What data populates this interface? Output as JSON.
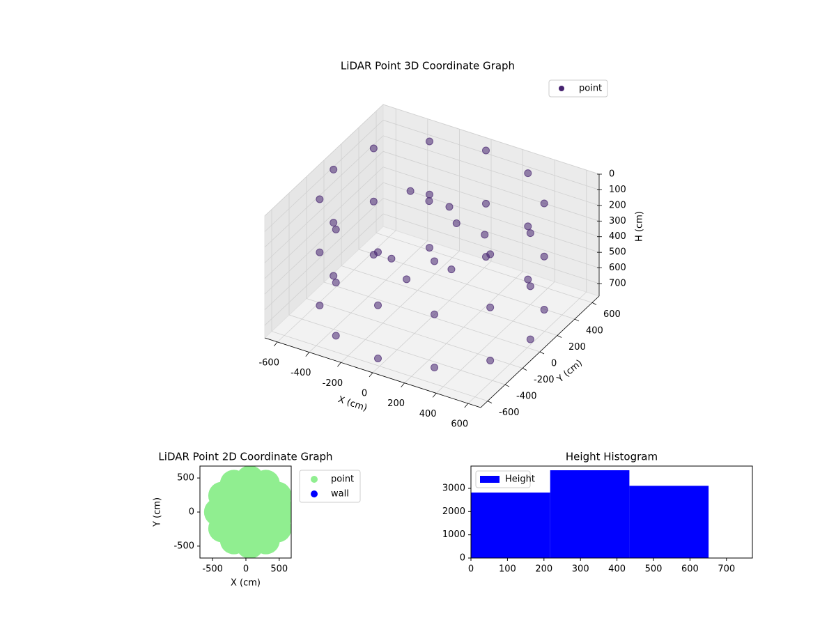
{
  "chart_data": [
    {
      "type": "scatter3d",
      "title": "LiDAR Point 3D Coordinate Graph",
      "xlabel": "X (cm)",
      "ylabel": "Y (cm)",
      "zlabel": "H (cm)",
      "series": [
        {
          "name": "point",
          "color": "#46226f",
          "x": [
            620,
            537,
            310,
            0,
            -310,
            -537,
            -620,
            -537,
            -310,
            0,
            310,
            537,
            620,
            537,
            310,
            0,
            -310,
            -537,
            -620,
            -537,
            -310,
            0,
            310,
            537,
            620,
            537,
            310,
            0,
            -310,
            -537,
            -620,
            -537,
            -310,
            0,
            310,
            537,
            -100,
            0,
            100,
            -200,
            -50,
            150,
            250,
            -300
          ],
          "y": [
            0,
            310,
            537,
            620,
            537,
            310,
            0,
            -310,
            -537,
            -620,
            -537,
            -310,
            0,
            310,
            537,
            620,
            537,
            310,
            0,
            -310,
            -537,
            -620,
            -537,
            -310,
            0,
            310,
            537,
            620,
            537,
            310,
            0,
            -310,
            -537,
            -620,
            -537,
            -310,
            150,
            200,
            100,
            -100,
            -200,
            -50,
            150,
            300
          ],
          "z": [
            40,
            40,
            40,
            40,
            40,
            40,
            40,
            40,
            40,
            40,
            40,
            40,
            380,
            380,
            380,
            380,
            380,
            380,
            380,
            380,
            380,
            380,
            380,
            380,
            720,
            720,
            720,
            720,
            720,
            720,
            720,
            720,
            720,
            720,
            720,
            720,
            150,
            180,
            200,
            420,
            450,
            400,
            250,
            230
          ]
        }
      ],
      "xlim": [
        -680,
        680
      ],
      "ylim": [
        -680,
        680
      ],
      "zlim": [
        0,
        780
      ],
      "zinvert": true,
      "xticks": [
        -600,
        -400,
        -200,
        0,
        200,
        400,
        600
      ],
      "yticks": [
        -600,
        -400,
        -200,
        0,
        200,
        400,
        600
      ],
      "zticks": [
        0,
        100,
        200,
        300,
        400,
        500,
        600,
        700
      ],
      "grid": true
    },
    {
      "type": "scatter",
      "title": "LiDAR Point 2D Coordinate Graph",
      "xlabel": "X (cm)",
      "ylabel": "Y (cm)",
      "series": [
        {
          "name": "wall",
          "color": "#0000ff",
          "x": [
            490
          ],
          "y": [
            70
          ]
        },
        {
          "name": "point",
          "color": "#90ee90",
          "x": [
            540,
            476,
            300,
            60,
            -180,
            -356,
            -420,
            -356,
            -180,
            60,
            300,
            476,
            300,
            180,
            -60,
            -180,
            -60,
            180,
            60
          ],
          "y": [
            0,
            240,
            416,
            480,
            416,
            240,
            0,
            -240,
            -416,
            -480,
            -416,
            -240,
            0,
            208,
            208,
            0,
            -208,
            -208,
            0
          ]
        }
      ],
      "xlim": [
        -690,
        680
      ],
      "ylim": [
        -675,
        675
      ],
      "xticks": [
        -500,
        0,
        500
      ],
      "yticks": [
        -500,
        0,
        500
      ]
    },
    {
      "type": "histogram",
      "title": "Height Histogram",
      "legend": "Height",
      "color": "#0000ff",
      "bins": [
        0,
        217,
        434,
        651
      ],
      "counts": [
        2820,
        3780,
        3110
      ],
      "xlim": [
        0,
        771
      ],
      "ylim": [
        0,
        3960
      ],
      "xticks": [
        0,
        100,
        200,
        300,
        400,
        500,
        600,
        700
      ],
      "yticks": [
        0,
        1000,
        2000,
        3000
      ]
    }
  ]
}
